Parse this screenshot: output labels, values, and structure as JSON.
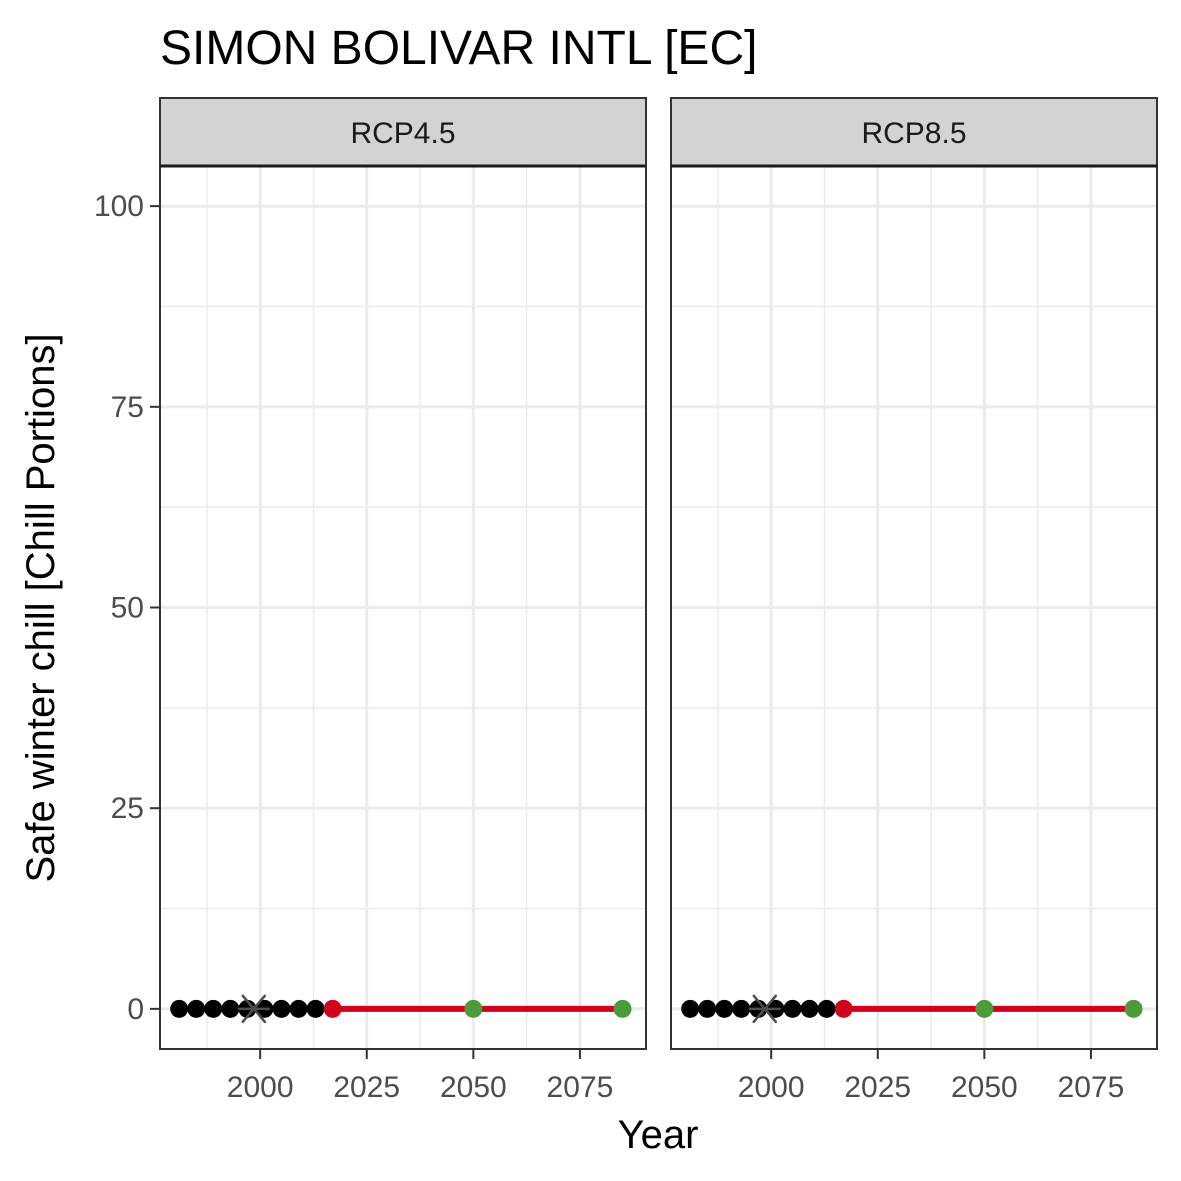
{
  "chart_data": {
    "type": "scatter",
    "title": "SIMON BOLIVAR INTL [EC]",
    "xlabel": "Year",
    "ylabel": "Safe winter chill [Chill Portions]",
    "xlim": [
      1976.5,
      2090.5
    ],
    "ylim": [
      -5,
      105
    ],
    "xticks": [
      2000,
      2025,
      2050,
      2075
    ],
    "yticks": [
      0,
      25,
      50,
      75,
      100
    ],
    "grid": true,
    "legend": "none",
    "colors": {
      "historic": "#000000",
      "reference": "#4d4d4d",
      "future_line": "#d0021b",
      "future_start": "#d0021b",
      "future_points": "#4c9a3c"
    },
    "panels": [
      {
        "label": "RCP4.5",
        "historic_points": [
          {
            "x": 1981,
            "y": 0
          },
          {
            "x": 1985,
            "y": 0
          },
          {
            "x": 1989,
            "y": 0
          },
          {
            "x": 1993,
            "y": 0
          },
          {
            "x": 1997,
            "y": 0
          },
          {
            "x": 2001,
            "y": 0
          },
          {
            "x": 2005,
            "y": 0
          },
          {
            "x": 2009,
            "y": 0
          },
          {
            "x": 2013,
            "y": 0
          }
        ],
        "reference_point": {
          "x": 1998.5,
          "y": 0
        },
        "future_line": [
          {
            "x": 2017,
            "y": 0
          },
          {
            "x": 2085,
            "y": 0
          }
        ],
        "future_start_point": {
          "x": 2017,
          "y": 0
        },
        "future_points": [
          {
            "x": 2050,
            "y": 0
          },
          {
            "x": 2085,
            "y": 0
          }
        ]
      },
      {
        "label": "RCP8.5",
        "historic_points": [
          {
            "x": 1981,
            "y": 0
          },
          {
            "x": 1985,
            "y": 0
          },
          {
            "x": 1989,
            "y": 0
          },
          {
            "x": 1993,
            "y": 0
          },
          {
            "x": 1997,
            "y": 0
          },
          {
            "x": 2001,
            "y": 0
          },
          {
            "x": 2005,
            "y": 0
          },
          {
            "x": 2009,
            "y": 0
          },
          {
            "x": 2013,
            "y": 0
          }
        ],
        "reference_point": {
          "x": 1998.5,
          "y": 0
        },
        "future_line": [
          {
            "x": 2017,
            "y": 0
          },
          {
            "x": 2085,
            "y": 0
          }
        ],
        "future_start_point": {
          "x": 2017,
          "y": 0
        },
        "future_points": [
          {
            "x": 2050,
            "y": 0
          },
          {
            "x": 2085,
            "y": 0
          }
        ]
      }
    ]
  }
}
